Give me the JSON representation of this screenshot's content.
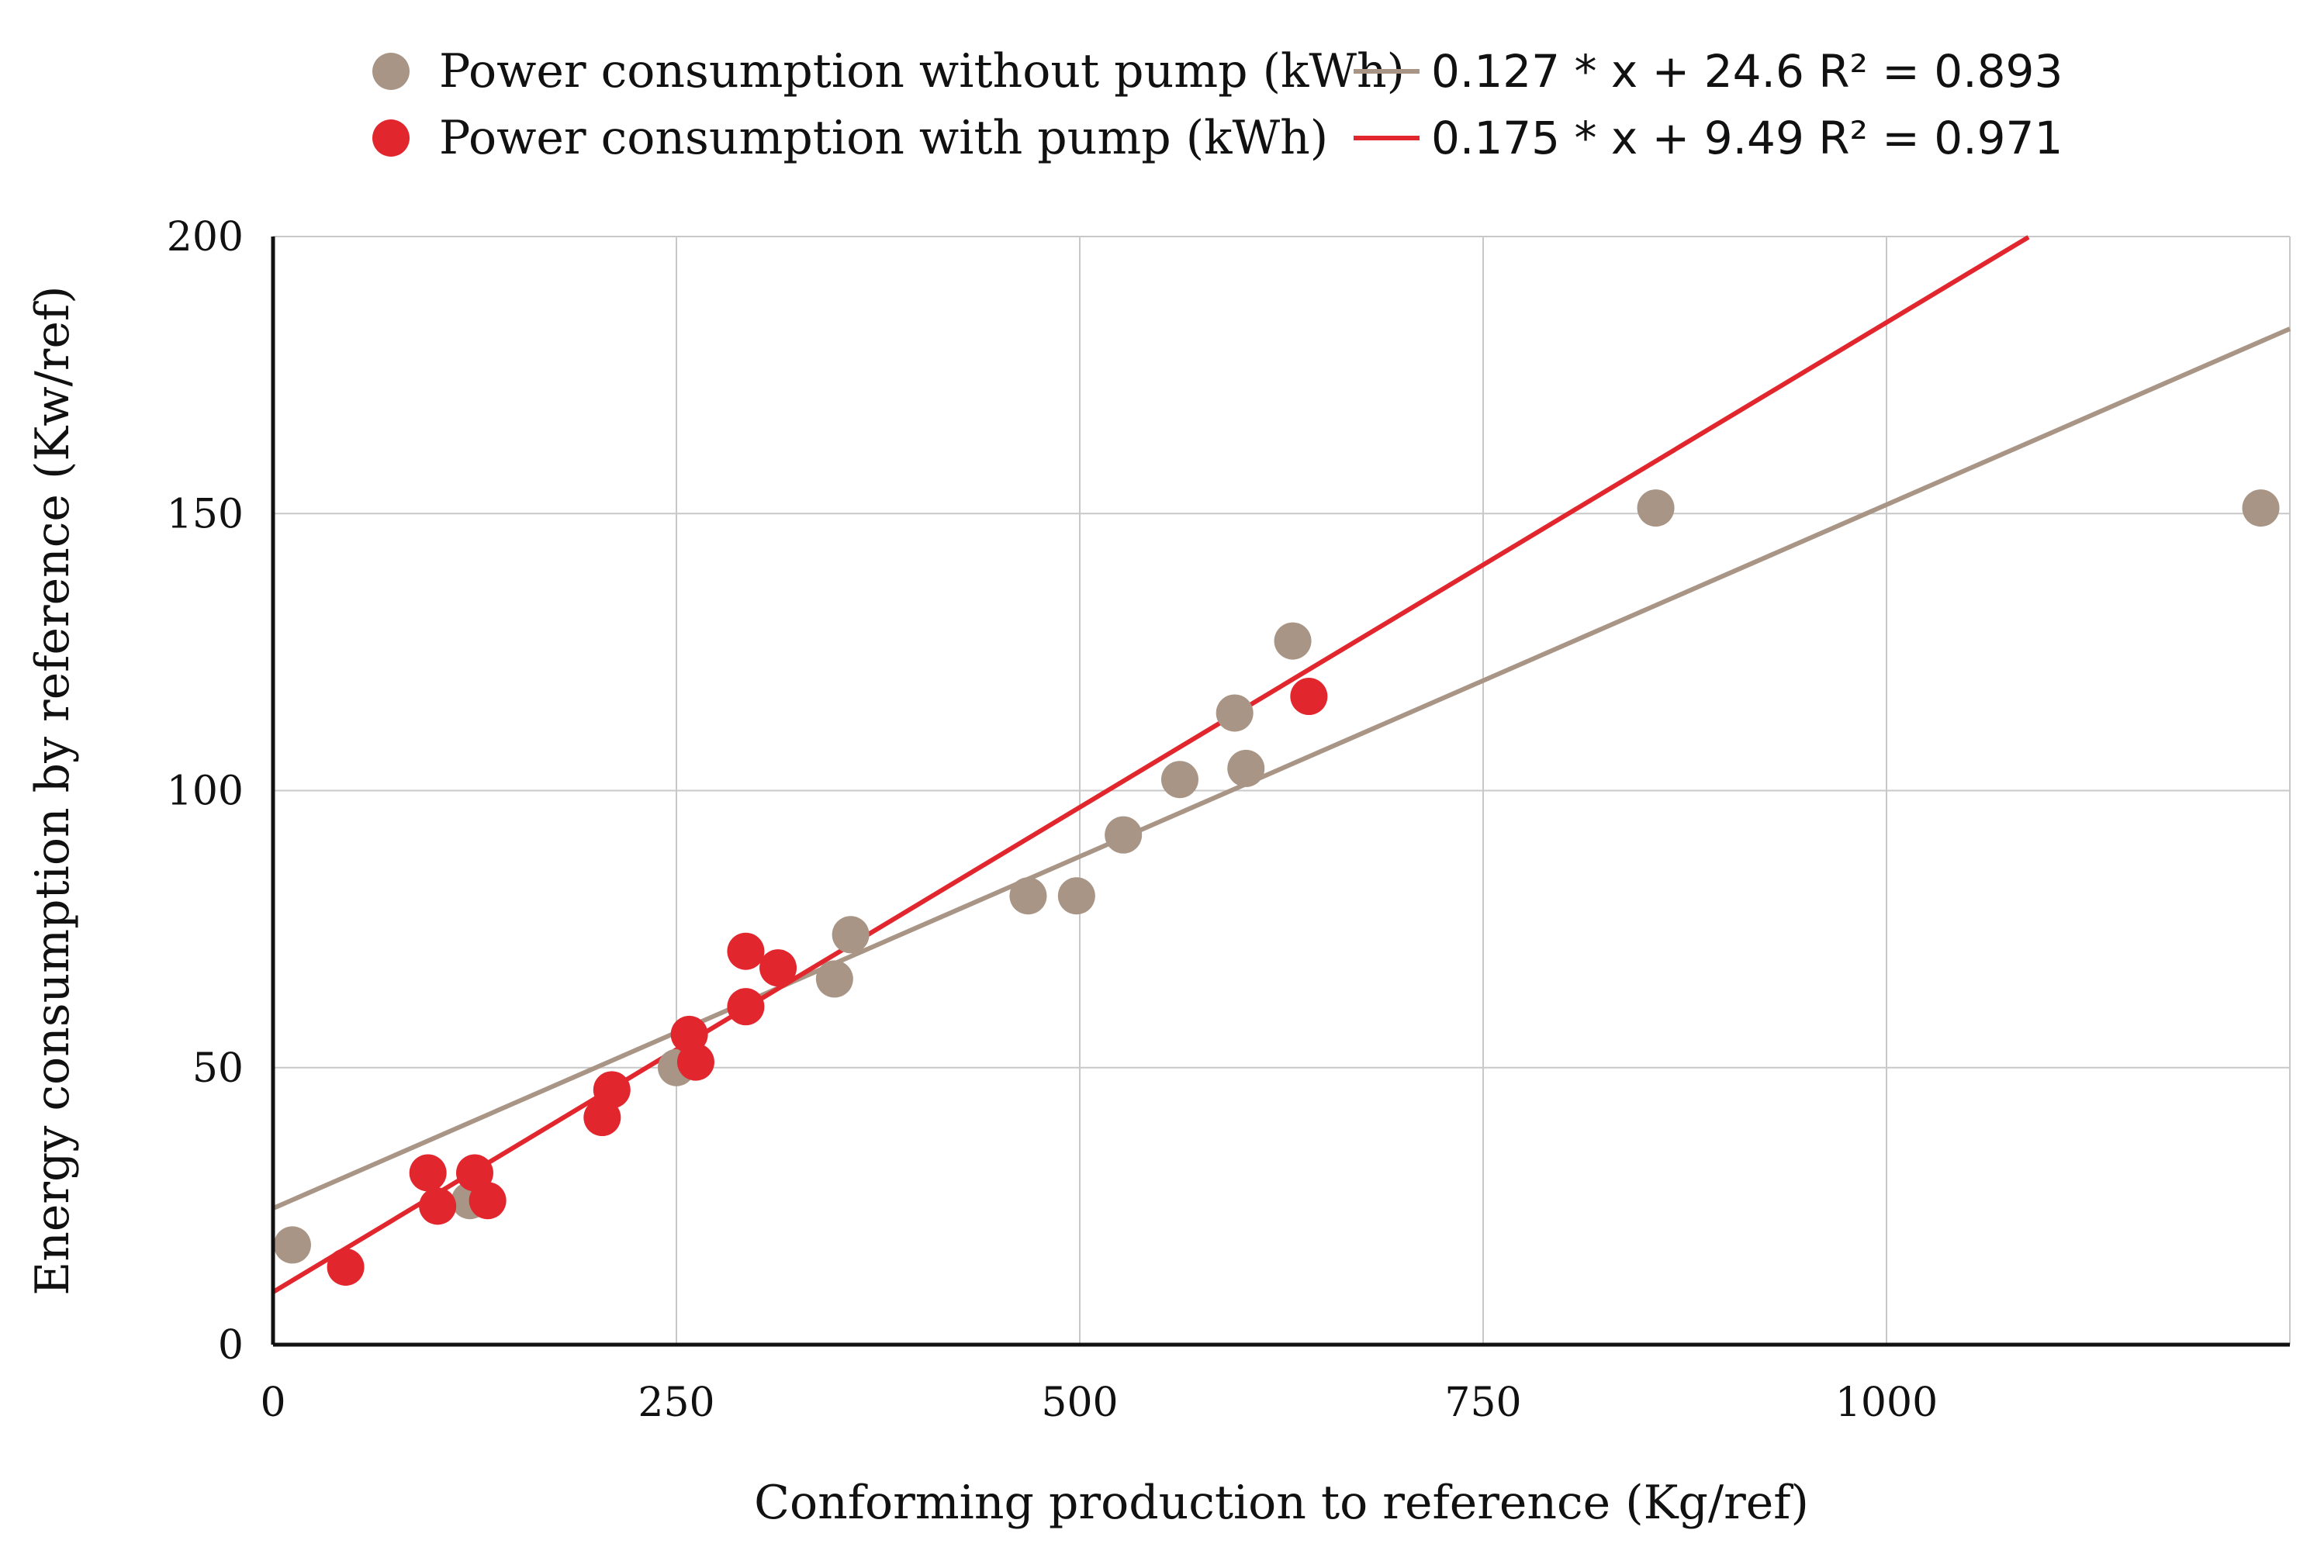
{
  "chart_data": {
    "type": "scatter",
    "title": "",
    "xlabel": "Conforming production to reference (Kg/ref)",
    "ylabel": "Energy consumption by reference (Kw/ref)",
    "xlim": [
      0,
      1250
    ],
    "ylim": [
      0,
      200
    ],
    "x_ticks": [
      "0",
      "250",
      "500",
      "750",
      "1000"
    ],
    "y_ticks": [
      "0",
      "50",
      "100",
      "150",
      "200"
    ],
    "x_tick_values": [
      0,
      250,
      500,
      750,
      1000
    ],
    "y_tick_values": [
      0,
      50,
      100,
      150,
      200
    ],
    "grid": true,
    "legend_position": "top",
    "series": [
      {
        "name": "Power consumption without pump (kWh)",
        "color": "#a89585",
        "points": [
          {
            "x": 12,
            "y": 18
          },
          {
            "x": 122,
            "y": 26
          },
          {
            "x": 250,
            "y": 50
          },
          {
            "x": 348,
            "y": 66
          },
          {
            "x": 358,
            "y": 74
          },
          {
            "x": 468,
            "y": 81
          },
          {
            "x": 498,
            "y": 81
          },
          {
            "x": 527,
            "y": 92
          },
          {
            "x": 562,
            "y": 102
          },
          {
            "x": 596,
            "y": 114
          },
          {
            "x": 603,
            "y": 104
          },
          {
            "x": 632,
            "y": 127
          },
          {
            "x": 857,
            "y": 151
          },
          {
            "x": 1232,
            "y": 151
          }
        ],
        "trendline": {
          "slope": 0.127,
          "intercept": 24.6,
          "label": "0.127 * x + 24.6 R² = 0.893",
          "x_range": [
            0,
            1250
          ]
        }
      },
      {
        "name": "Power consumption with pump (kWh)",
        "color": "#e2262e",
        "points": [
          {
            "x": 45,
            "y": 14
          },
          {
            "x": 96,
            "y": 31
          },
          {
            "x": 102,
            "y": 25
          },
          {
            "x": 125,
            "y": 31
          },
          {
            "x": 133,
            "y": 26
          },
          {
            "x": 204,
            "y": 41
          },
          {
            "x": 210,
            "y": 46
          },
          {
            "x": 258,
            "y": 56
          },
          {
            "x": 262,
            "y": 51
          },
          {
            "x": 293,
            "y": 61
          },
          {
            "x": 293,
            "y": 71
          },
          {
            "x": 313,
            "y": 68
          },
          {
            "x": 642,
            "y": 117
          }
        ],
        "trendline": {
          "slope": 0.175,
          "intercept": 9.49,
          "label": "0.175 * x + 9.49 R² = 0.971",
          "x_range": [
            0,
            1088
          ]
        }
      }
    ]
  }
}
